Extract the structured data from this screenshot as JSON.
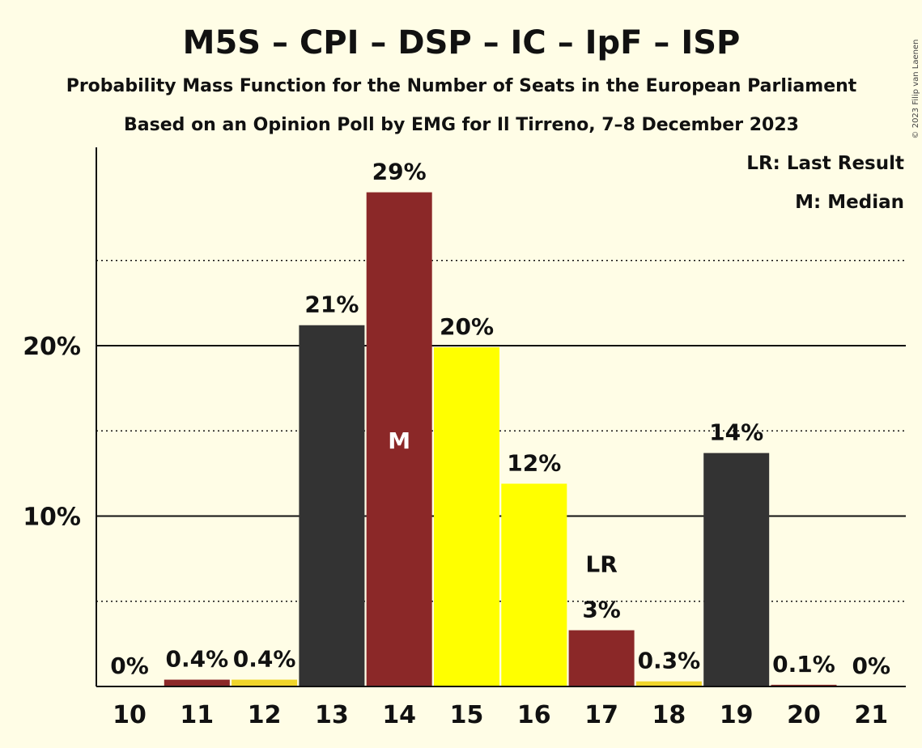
{
  "chart_data": {
    "type": "bar",
    "title": "M5S – CPI – DSP – IC – IpF – ISP",
    "subtitle": "Probability Mass Function for the Number of Seats in the European Parliament",
    "subtitle2": "Based on an Opinion Poll by EMG for Il Tirreno, 7–8 December 2023",
    "copyright": "© 2023 Filip van Laenen",
    "legend": {
      "last_result": "LR: Last Result",
      "median": "M: Median"
    },
    "categories": [
      "10",
      "11",
      "12",
      "13",
      "14",
      "15",
      "16",
      "17",
      "18",
      "19",
      "20",
      "21"
    ],
    "values": [
      0,
      0.4,
      0.4,
      21.2,
      29.0,
      19.9,
      11.9,
      3.3,
      0.3,
      13.7,
      0.1,
      0
    ],
    "labels": [
      "0%",
      "0.4%",
      "0.4%",
      "21%",
      "29%",
      "20%",
      "12%",
      "3%",
      "0.3%",
      "14%",
      "0.1%",
      "0%"
    ],
    "colors": [
      "#8B2828",
      "#8B2828",
      "#F0D52A",
      "#333333",
      "#8B2828",
      "#FFFF00",
      "#FFFF00",
      "#8B2828",
      "#F0D52A",
      "#333333",
      "#8B2828",
      "#8B2828"
    ],
    "median_category": "14",
    "median_marker": "M",
    "last_result_category": "17",
    "last_result_marker": "LR",
    "ytick_values": [
      10,
      20
    ],
    "ytick_labels": [
      "10%",
      "20%"
    ],
    "minor_gridlines": [
      5,
      15,
      25
    ],
    "ylim": [
      0,
      31.6
    ],
    "xlabel": "",
    "ylabel": "",
    "grid": true,
    "legend_position": "top-right"
  }
}
